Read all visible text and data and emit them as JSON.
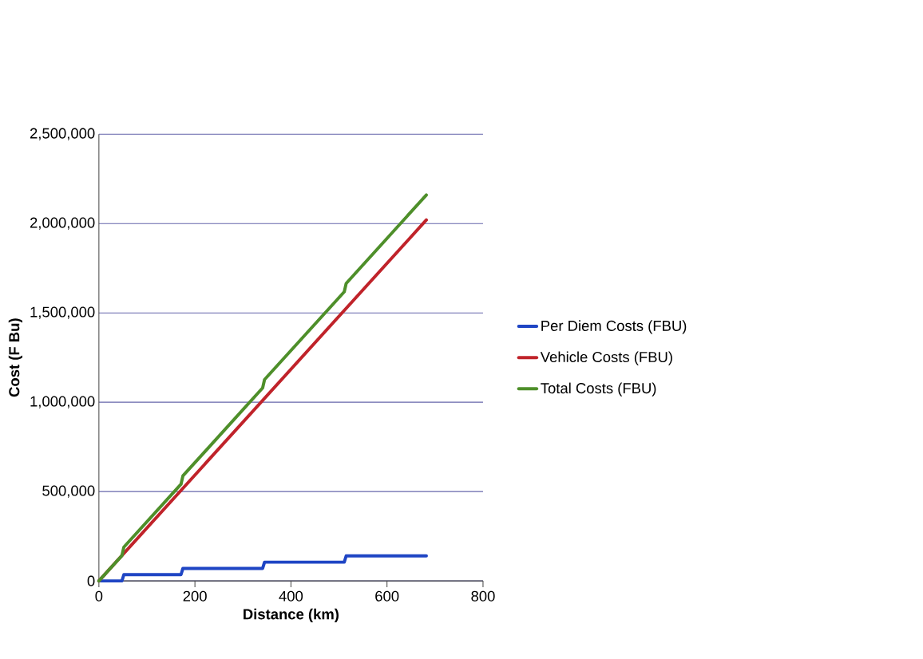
{
  "chart_data": {
    "type": "line",
    "xlabel": "Distance (km)",
    "ylabel": "Cost (F Bu)",
    "xlim": [
      0,
      800
    ],
    "xticks": [
      0,
      200,
      400,
      600,
      800
    ],
    "ylim": [
      0,
      2500000
    ],
    "yticks": [
      0,
      {
        "value": 500000,
        "label": "500,000"
      },
      {
        "value": 1000000,
        "label": "1,000,000"
      },
      {
        "value": 1500000,
        "label": "1,500,000"
      },
      {
        "value": 2000000,
        "label": "2,000,000"
      },
      {
        "value": 2500000,
        "label": "2,500,000"
      }
    ],
    "grid": "y",
    "legend": "right",
    "marker": "none",
    "line_style": "solid",
    "series": [
      {
        "name": "Per Diem Costs (FBU)",
        "color": "#1f45c4",
        "x": [
          0,
          48,
          52,
          171,
          175,
          341,
          345,
          511,
          515,
          682
        ],
        "values": [
          0,
          0,
          35000,
          35000,
          70000,
          70000,
          105000,
          105000,
          140000,
          140000
        ]
      },
      {
        "name": "Vehicle Costs (FBU)",
        "color": "#c0232a",
        "x": [
          0,
          682
        ],
        "values": [
          0,
          2020000
        ]
      },
      {
        "name": "Total Costs (FBU)",
        "color": "#4e8f2a",
        "x": [
          0,
          48,
          52,
          171,
          175,
          341,
          345,
          511,
          515,
          682
        ],
        "values": [
          0,
          142000,
          189000,
          541000,
          588000,
          1080000,
          1127000,
          1618000,
          1665000,
          2160000
        ]
      }
    ]
  }
}
